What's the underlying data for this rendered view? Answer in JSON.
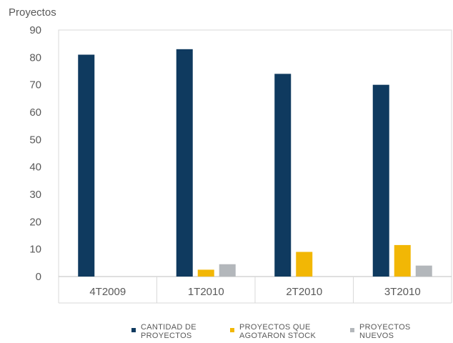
{
  "chart_data": {
    "type": "bar",
    "title": "",
    "ylabel": "Proyectos",
    "xlabel": "",
    "categories": [
      "4T2009",
      "1T2010",
      "2T2010",
      "3T2010"
    ],
    "series": [
      {
        "name": "CANTIDAD DE PROYECTOS",
        "legend_lines": [
          "CANTIDAD DE",
          "PROYECTOS"
        ],
        "color": "#0f3a5f",
        "values": [
          81,
          83,
          74,
          70
        ]
      },
      {
        "name": "PROYECTOS QUE AGOTARON STOCK",
        "legend_lines": [
          "PROYECTOS QUE",
          "AGOTARON STOCK"
        ],
        "color": "#f2b705",
        "values": [
          0,
          2.5,
          9,
          11.5
        ]
      },
      {
        "name": "PROYECTOS NUEVOS",
        "legend_lines": [
          "PROYECTOS",
          "NUEVOS"
        ],
        "color": "#b3b7bb",
        "values": [
          0,
          4.5,
          0,
          4
        ]
      }
    ],
    "ylim": [
      0,
      90
    ],
    "yticks": [
      "0",
      "10",
      "20",
      "30",
      "40",
      "50",
      "60",
      "70",
      "80",
      "90"
    ],
    "grid": false,
    "legend_position": "bottom"
  }
}
